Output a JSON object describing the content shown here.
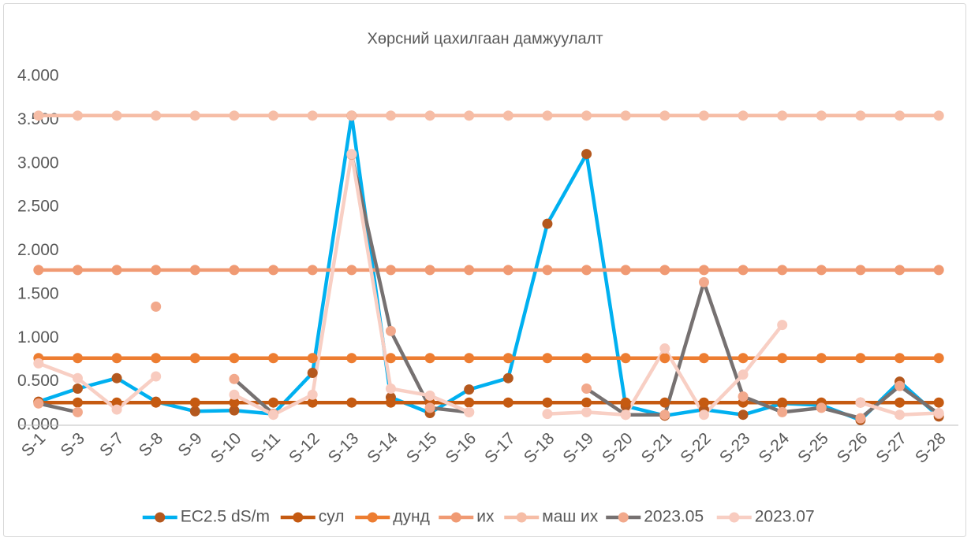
{
  "chart_data": {
    "type": "line",
    "title": "Хөрсний цахилгаан дамжуулалт",
    "categories": [
      "S-1",
      "S-3",
      "S-7",
      "S-8",
      "S-9",
      "S-10",
      "S-11",
      "S-12",
      "S-13",
      "S-14",
      "S-15",
      "S-16",
      "S-17",
      "S-18",
      "S-19",
      "S-20",
      "S-21",
      "S-22",
      "S-23",
      "S-24",
      "S-25",
      "S-26",
      "S-27",
      "S-28"
    ],
    "ylim": [
      0,
      4
    ],
    "yticks": [
      {
        "value": 0,
        "label": "0.000"
      },
      {
        "value": 0.5,
        "label": "0.500"
      },
      {
        "value": 1,
        "label": "1.000"
      },
      {
        "value": 1.5,
        "label": "1.500"
      },
      {
        "value": 2,
        "label": "2.000"
      },
      {
        "value": 2.5,
        "label": "2.500"
      },
      {
        "value": 3,
        "label": "3.000"
      },
      {
        "value": 3.5,
        "label": "3.500"
      },
      {
        "value": 4,
        "label": "4.000"
      }
    ],
    "grid": false,
    "legend": "bottom",
    "series": [
      {
        "name": "EC2.5 dS/m",
        "color": "#00b0f0",
        "marker_color": "#b4581e",
        "values": [
          0.27,
          0.42,
          0.54,
          0.27,
          0.16,
          0.17,
          0.13,
          0.6,
          3.55,
          0.32,
          0.14,
          0.41,
          0.54,
          2.31,
          3.11,
          0.22,
          0.11,
          0.18,
          0.12,
          0.25,
          0.23,
          0.06,
          0.5,
          0.1
        ]
      },
      {
        "name": "сул",
        "color": "#c55a11",
        "marker_color": "#c55a11",
        "values": [
          0.26,
          0.26,
          0.26,
          0.26,
          0.26,
          0.26,
          0.26,
          0.26,
          0.26,
          0.26,
          0.26,
          0.26,
          0.26,
          0.26,
          0.26,
          0.26,
          0.26,
          0.26,
          0.26,
          0.26,
          0.26,
          0.26,
          0.26,
          0.26
        ]
      },
      {
        "name": "дунд",
        "color": "#ed7d31",
        "marker_color": "#ed7d31",
        "values": [
          0.77,
          0.77,
          0.77,
          0.77,
          0.77,
          0.77,
          0.77,
          0.77,
          0.77,
          0.77,
          0.77,
          0.77,
          0.77,
          0.77,
          0.77,
          0.77,
          0.77,
          0.77,
          0.77,
          0.77,
          0.77,
          0.77,
          0.77,
          0.77
        ]
      },
      {
        "name": "их",
        "color": "#f09a73",
        "marker_color": "#f09a73",
        "values": [
          1.78,
          1.78,
          1.78,
          1.78,
          1.78,
          1.78,
          1.78,
          1.78,
          1.78,
          1.78,
          1.78,
          1.78,
          1.78,
          1.78,
          1.78,
          1.78,
          1.78,
          1.78,
          1.78,
          1.78,
          1.78,
          1.78,
          1.78,
          1.78
        ]
      },
      {
        "name": "маш их",
        "color": "#f6bda6",
        "marker_color": "#f6bda6",
        "values": [
          3.55,
          3.55,
          3.55,
          3.55,
          3.55,
          3.55,
          3.55,
          3.55,
          3.55,
          3.55,
          3.55,
          3.55,
          3.55,
          3.55,
          3.55,
          3.55,
          3.55,
          3.55,
          3.55,
          3.55,
          3.55,
          3.55,
          3.55,
          3.55
        ]
      },
      {
        "name": "2023.05",
        "color": "#767171",
        "marker_color": "#f2a98c",
        "values": [
          0.25,
          0.15,
          null,
          1.36,
          null,
          0.53,
          0.13,
          null,
          3.1,
          1.08,
          0.2,
          0.15,
          null,
          null,
          0.42,
          0.12,
          0.12,
          1.64,
          0.33,
          0.15,
          0.2,
          0.08,
          0.45,
          0.13
        ]
      },
      {
        "name": "2023.07",
        "color": "#f8cfc4",
        "marker_color": "#f8cbbf",
        "values": [
          0.71,
          0.54,
          0.18,
          0.56,
          null,
          0.35,
          0.12,
          0.35,
          3.11,
          0.42,
          0.34,
          0.15,
          null,
          0.13,
          0.15,
          0.12,
          0.88,
          0.12,
          0.58,
          1.15,
          null,
          0.26,
          0.12,
          0.14
        ]
      }
    ]
  }
}
